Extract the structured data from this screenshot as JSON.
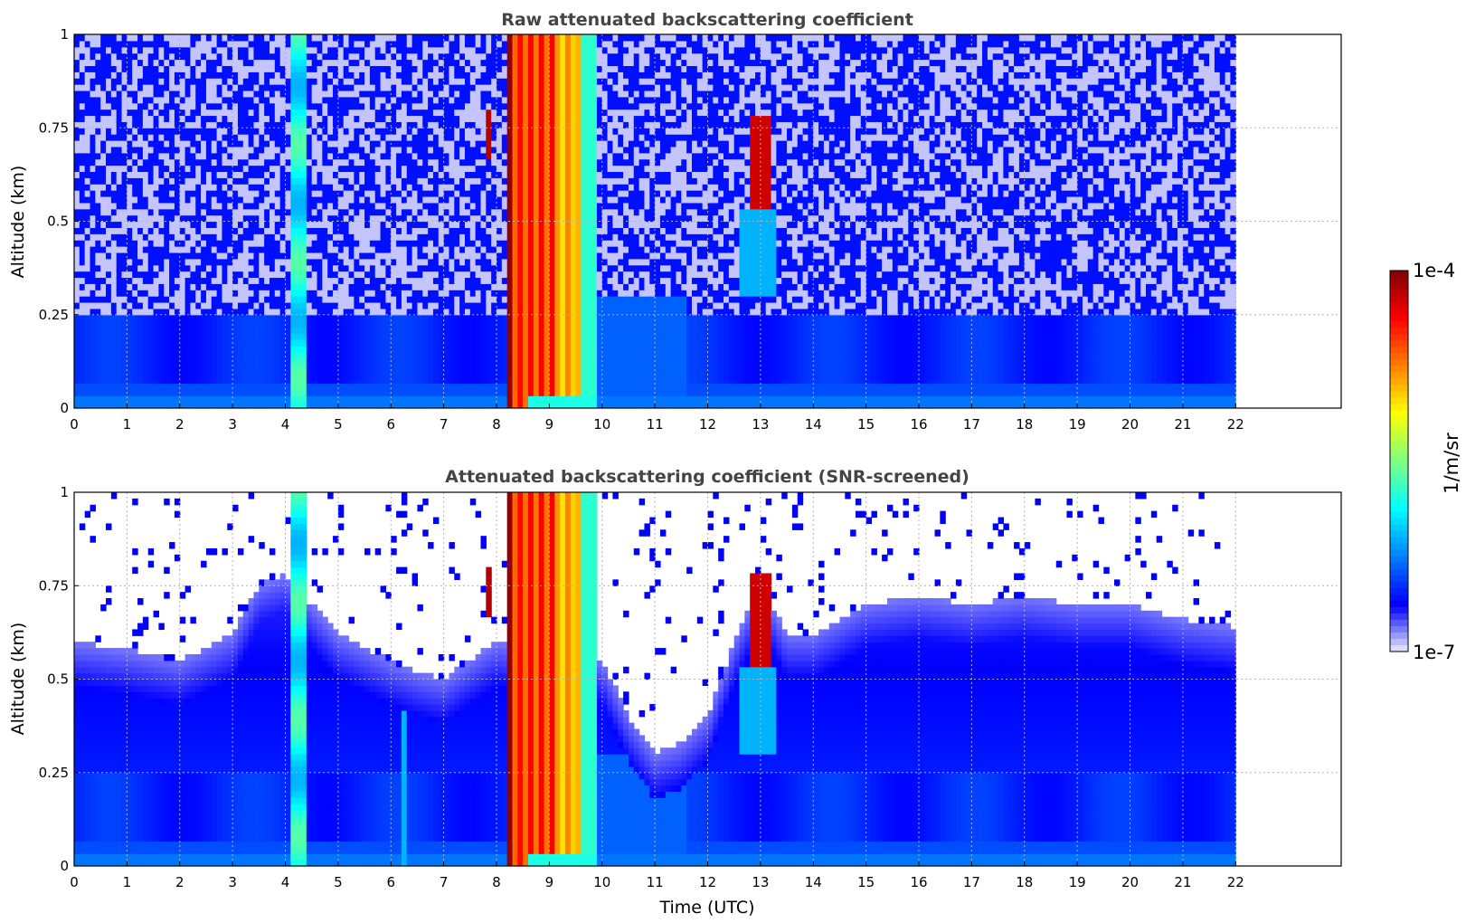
{
  "chart_data": [
    {
      "type": "heatmap",
      "title": "Raw attenuated backscattering coefficient",
      "xlabel": "",
      "ylabel": "Altitude (km)",
      "xlim": [
        0,
        24
      ],
      "ylim": [
        0,
        1
      ],
      "x_ticks": [
        0,
        1,
        2,
        3,
        4,
        5,
        6,
        7,
        8,
        9,
        10,
        11,
        12,
        13,
        14,
        15,
        16,
        17,
        18,
        19,
        20,
        21,
        22
      ],
      "y_ticks": [
        "0",
        "0.25",
        "0.5",
        "0.75",
        "1"
      ],
      "data_extent_hours": [
        0,
        22
      ],
      "grid": true,
      "colormap": "jet",
      "color_scale": "log",
      "features": [
        {
          "kind": "background noise",
          "altitude_km": [
            0.25,
            1.0
          ],
          "level": "low, speckled"
        },
        {
          "kind": "boundary layer",
          "altitude_km": [
            0.0,
            0.25
          ],
          "level": "low-moderate"
        },
        {
          "kind": "vertical streak",
          "time_utc": [
            4.1,
            4.4
          ],
          "altitude_km": [
            0,
            1
          ],
          "level": "moderate"
        },
        {
          "kind": "cloud / fog column",
          "time_utc": [
            8.2,
            9.9
          ],
          "altitude_km": [
            0,
            1
          ],
          "level": "high"
        },
        {
          "kind": "cloud patch",
          "time_utc": [
            7.8,
            7.9
          ],
          "altitude_km": [
            0.68,
            0.78
          ],
          "level": "very high"
        },
        {
          "kind": "cloud patch",
          "time_utc": [
            12.9,
            13.2
          ],
          "altitude_km": [
            0.55,
            0.75
          ],
          "level": "very high"
        }
      ]
    },
    {
      "type": "heatmap",
      "title": "Attenuated backscattering coefficient (SNR-screened)",
      "xlabel": "Time (UTC)",
      "ylabel": "Altitude (km)",
      "xlim": [
        0,
        24
      ],
      "ylim": [
        0,
        1
      ],
      "x_ticks": [
        0,
        1,
        2,
        3,
        4,
        5,
        6,
        7,
        8,
        9,
        10,
        11,
        12,
        13,
        14,
        15,
        16,
        17,
        18,
        19,
        20,
        21,
        22
      ],
      "y_ticks": [
        "0",
        "0.25",
        "0.5",
        "0.75",
        "1"
      ],
      "data_extent_hours": [
        0,
        22
      ],
      "grid": true,
      "colormap": "jet",
      "color_scale": "log",
      "screened_top_km": [
        [
          0,
          0.6
        ],
        [
          1,
          0.58
        ],
        [
          2,
          0.55
        ],
        [
          3,
          0.62
        ],
        [
          3.5,
          0.75
        ],
        [
          4,
          0.78
        ],
        [
          5,
          0.62
        ],
        [
          6,
          0.55
        ],
        [
          6.5,
          0.52
        ],
        [
          7,
          0.5
        ],
        [
          7.5,
          0.55
        ],
        [
          8,
          0.6
        ],
        [
          10,
          0.55
        ],
        [
          10.5,
          0.4
        ],
        [
          11,
          0.3
        ],
        [
          11.5,
          0.33
        ],
        [
          12,
          0.4
        ],
        [
          12.5,
          0.6
        ],
        [
          13,
          0.75
        ],
        [
          13.5,
          0.62
        ],
        [
          14,
          0.62
        ],
        [
          15,
          0.7
        ],
        [
          16,
          0.72
        ],
        [
          17,
          0.7
        ],
        [
          18,
          0.72
        ],
        [
          19,
          0.7
        ],
        [
          20,
          0.7
        ],
        [
          21,
          0.66
        ],
        [
          22,
          0.64
        ]
      ]
    }
  ],
  "colorbar": {
    "max_label": "1e-4",
    "min_label": "1e-7",
    "label": "1/m/sr",
    "colors": [
      "#7f0000",
      "#b30000",
      "#e60000",
      "#ff3300",
      "#ff6600",
      "#ff9900",
      "#ffcc00",
      "#ffff00",
      "#bfff40",
      "#80ff80",
      "#40ffbf",
      "#00e6e6",
      "#00bfff",
      "#0099ff",
      "#0066ff",
      "#0033ff",
      "#0000ff",
      "#2b2bff",
      "#5555ff",
      "#8080ff",
      "#aaaaff",
      "#d4d4ff",
      "#eeeeff"
    ]
  }
}
